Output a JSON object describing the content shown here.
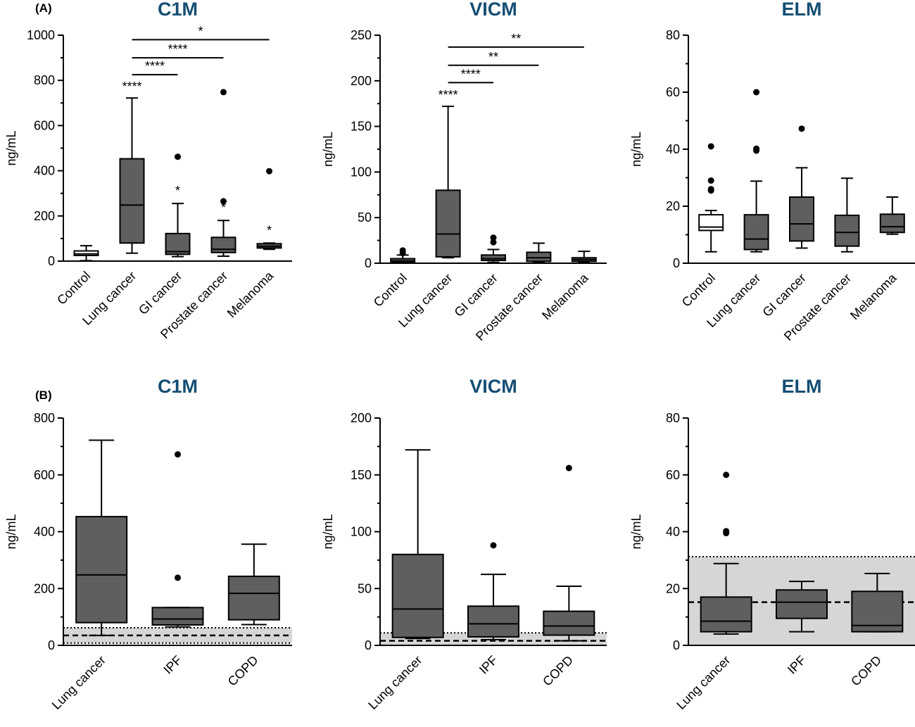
{
  "panel_labels": [
    "(A)",
    "(B)"
  ],
  "chart_data": [
    {
      "type": "box",
      "title": "C1M",
      "ylabel": "ng/mL",
      "ylim": [
        0,
        1000
      ],
      "yticks": [
        0,
        200,
        400,
        600,
        800,
        1000
      ],
      "categories": [
        "Control",
        "Lung cancer",
        "GI cancer",
        "Prostate cancer",
        "Melanoma"
      ],
      "boxes": [
        {
          "min": 2,
          "q1": 25,
          "median": 32,
          "q3": 45,
          "max": 68,
          "outliers": [],
          "fill": "white",
          "star": ""
        },
        {
          "min": 35,
          "q1": 80,
          "median": 248,
          "q3": 453,
          "max": 722,
          "outliers": [],
          "fill": "grey",
          "star": "****"
        },
        {
          "min": 20,
          "q1": 30,
          "median": 42,
          "q3": 122,
          "max": 255,
          "outliers": [
            462
          ],
          "fill": "grey",
          "star": "*"
        },
        {
          "min": 22,
          "q1": 38,
          "median": 52,
          "q3": 105,
          "max": 180,
          "outliers": [
            265,
            748
          ],
          "fill": "grey",
          "star": "*"
        },
        {
          "min": 52,
          "q1": 58,
          "median": 66,
          "q3": 77,
          "max": 80,
          "outliers": [
            398
          ],
          "fill": "grey",
          "star": "*"
        }
      ],
      "brackets": [
        {
          "from": 1,
          "to": 4,
          "y": 980,
          "label": "*"
        },
        {
          "from": 1,
          "to": 3,
          "y": 900,
          "label": "****"
        },
        {
          "from": 1,
          "to": 2,
          "y": 825,
          "label": "****"
        }
      ],
      "reference_band": null
    },
    {
      "type": "box",
      "title": "VICM",
      "ylabel": "ng/mL",
      "ylim": [
        0,
        250
      ],
      "yticks": [
        0,
        50,
        100,
        150,
        200,
        250
      ],
      "categories": [
        "Control",
        "Lung cancer",
        "GI cancer",
        "Prostate cancer",
        "Melanoma"
      ],
      "boxes": [
        {
          "min": 0,
          "q1": 1,
          "median": 2.5,
          "q3": 5,
          "max": 9,
          "outliers": [
            11,
            14
          ],
          "fill": "grey",
          "star": ""
        },
        {
          "min": 6,
          "q1": 7,
          "median": 32,
          "q3": 80,
          "max": 172,
          "outliers": [],
          "fill": "grey",
          "star": "****"
        },
        {
          "min": 1,
          "q1": 3,
          "median": 5,
          "q3": 9,
          "max": 15,
          "outliers": [
            23,
            28
          ],
          "fill": "grey",
          "star": ""
        },
        {
          "min": 1,
          "q1": 2,
          "median": 6,
          "q3": 12,
          "max": 22,
          "outliers": [],
          "fill": "grey",
          "star": ""
        },
        {
          "min": 1,
          "q1": 2,
          "median": 4,
          "q3": 6,
          "max": 13,
          "outliers": [],
          "fill": "grey",
          "star": ""
        }
      ],
      "brackets": [
        {
          "from": 1,
          "to": 4,
          "y": 237,
          "label": "**"
        },
        {
          "from": 1,
          "to": 3,
          "y": 217,
          "label": "**"
        },
        {
          "from": 1,
          "to": 2,
          "y": 198,
          "label": "****"
        }
      ],
      "reference_band": null
    },
    {
      "type": "box",
      "title": "ELM",
      "ylabel": "ng/mL",
      "ylim": [
        0,
        80
      ],
      "yticks": [
        0,
        20,
        40,
        60,
        80
      ],
      "categories": [
        "Control",
        "Lung cancer",
        "GI cancer",
        "Prostate cancer",
        "Melanoma"
      ],
      "boxes": [
        {
          "min": 4,
          "q1": 11.5,
          "median": 12.7,
          "q3": 17,
          "max": 18.5,
          "outliers": [
            25.5,
            26,
            29,
            41
          ],
          "fill": "white",
          "star": ""
        },
        {
          "min": 4,
          "q1": 4.8,
          "median": 8.5,
          "q3": 17,
          "max": 28.8,
          "outliers": [
            39.5,
            40.2,
            60
          ],
          "fill": "grey",
          "star": ""
        },
        {
          "min": 5.3,
          "q1": 7.8,
          "median": 13.8,
          "q3": 23.2,
          "max": 33.5,
          "outliers": [
            47.2
          ],
          "fill": "grey",
          "star": ""
        },
        {
          "min": 4,
          "q1": 6,
          "median": 10.8,
          "q3": 16.8,
          "max": 29.8,
          "outliers": [],
          "fill": "grey",
          "star": ""
        },
        {
          "min": 10.2,
          "q1": 10.8,
          "median": 12.8,
          "q3": 17.2,
          "max": 23.2,
          "outliers": [],
          "fill": "grey",
          "star": ""
        }
      ],
      "brackets": [],
      "reference_band": null
    },
    {
      "type": "box",
      "title": "C1M",
      "ylabel": "ng/mL",
      "ylim": [
        0,
        800
      ],
      "yticks": [
        0,
        200,
        400,
        600,
        800
      ],
      "categories": [
        "Lung cancer",
        "IPF",
        "COPD"
      ],
      "boxes": [
        {
          "min": 35,
          "q1": 80,
          "median": 248,
          "q3": 453,
          "max": 722,
          "outliers": [],
          "fill": "grey",
          "star": ""
        },
        {
          "min": 65,
          "q1": 72,
          "median": 93,
          "q3": 133,
          "max": 133,
          "outliers": [
            238,
            672
          ],
          "fill": "grey",
          "star": ""
        },
        {
          "min": 73,
          "q1": 90,
          "median": 183,
          "q3": 243,
          "max": 356,
          "outliers": [],
          "fill": "grey",
          "star": ""
        }
      ],
      "brackets": [],
      "reference_band": {
        "low": 8,
        "mid": 35,
        "high": 62
      }
    },
    {
      "type": "box",
      "title": "VICM",
      "ylabel": "ng/mL",
      "ylim": [
        0,
        200
      ],
      "yticks": [
        0,
        50,
        100,
        150,
        200
      ],
      "categories": [
        "Lung cancer",
        "IPF",
        "COPD"
      ],
      "boxes": [
        {
          "min": 6,
          "q1": 7,
          "median": 32,
          "q3": 80,
          "max": 172,
          "outliers": [],
          "fill": "grey",
          "star": ""
        },
        {
          "min": 5,
          "q1": 7.5,
          "median": 19,
          "q3": 34.5,
          "max": 62.5,
          "outliers": [
            88
          ],
          "fill": "grey",
          "star": ""
        },
        {
          "min": 4,
          "q1": 9,
          "median": 17,
          "q3": 30,
          "max": 52,
          "outliers": [
            156
          ],
          "fill": "grey",
          "star": ""
        }
      ],
      "brackets": [],
      "reference_band": {
        "low": 0,
        "mid": 4,
        "high": 11
      }
    },
    {
      "type": "box",
      "title": "ELM",
      "ylabel": "ng/mL",
      "ylim": [
        0,
        80
      ],
      "yticks": [
        0,
        20,
        40,
        60,
        80
      ],
      "categories": [
        "Lung cancer",
        "IPF",
        "COPD"
      ],
      "boxes": [
        {
          "min": 4,
          "q1": 4.8,
          "median": 8.5,
          "q3": 17,
          "max": 28.8,
          "outliers": [
            39.5,
            40.2,
            60
          ],
          "fill": "grey",
          "star": ""
        },
        {
          "min": 4.8,
          "q1": 9.5,
          "median": 15.2,
          "q3": 19.5,
          "max": 22.5,
          "outliers": [],
          "fill": "grey",
          "star": ""
        },
        {
          "min": 4.8,
          "q1": 4.8,
          "median": 7,
          "q3": 19,
          "max": 25.3,
          "outliers": [],
          "fill": "grey",
          "star": ""
        }
      ],
      "brackets": [],
      "reference_band": {
        "low": 0,
        "mid": 15.2,
        "high": 31.2
      }
    }
  ],
  "colors": {
    "title": "#154e73",
    "box_grey": "#5f5f5f",
    "box_white": "#ffffff",
    "band": "#d6d6d6",
    "ink": "#000000"
  }
}
